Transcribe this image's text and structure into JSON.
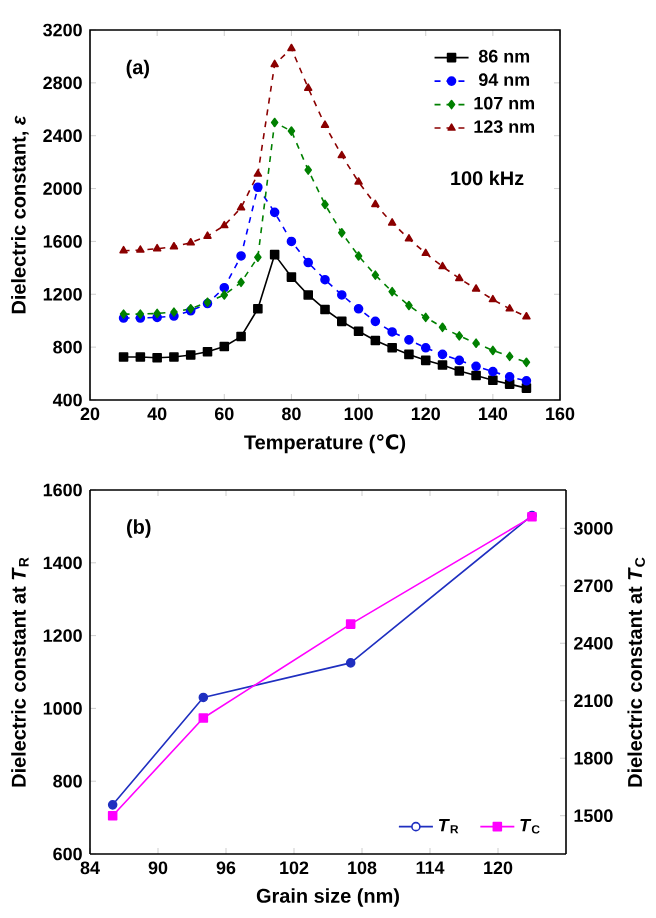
{
  "chart_data": [
    {
      "type": "line",
      "xlabel": "Temperature (℃)",
      "ylabel": "Dielectric constant, *ε*",
      "annotations": [
        "(a)",
        "100 kHz"
      ],
      "x": [
        30,
        35,
        40,
        45,
        50,
        55,
        60,
        65,
        70,
        75,
        80,
        85,
        90,
        95,
        100,
        105,
        110,
        115,
        120,
        125,
        130,
        135,
        140,
        145,
        150
      ],
      "xlim": [
        20,
        160
      ],
      "xticks": [
        20,
        40,
        60,
        80,
        100,
        120,
        140,
        160
      ],
      "ylim": [
        400,
        3200
      ],
      "yticks": [
        400,
        800,
        1200,
        1600,
        2000,
        2400,
        2800,
        3200
      ],
      "legend": "top right",
      "series": [
        {
          "name": "86 nm",
          "color": "#000000",
          "marker": "square",
          "line_style": "solid",
          "values": [
            725,
            725,
            720,
            725,
            740,
            765,
            805,
            880,
            1090,
            1500,
            1330,
            1195,
            1085,
            995,
            920,
            850,
            795,
            745,
            700,
            665,
            620,
            585,
            550,
            520,
            490
          ]
        },
        {
          "name": "94 nm",
          "color": "#0000ff",
          "marker": "circle",
          "line_style": "dashed",
          "values": [
            1020,
            1020,
            1025,
            1035,
            1075,
            1130,
            1250,
            1490,
            2010,
            1820,
            1600,
            1440,
            1310,
            1195,
            1090,
            995,
            915,
            855,
            795,
            745,
            700,
            655,
            615,
            575,
            545
          ]
        },
        {
          "name": "107 nm",
          "color": "#008000",
          "marker": "diamond",
          "line_style": "dashed",
          "values": [
            1050,
            1050,
            1055,
            1065,
            1090,
            1140,
            1195,
            1290,
            1480,
            2500,
            2435,
            2140,
            1880,
            1665,
            1490,
            1345,
            1220,
            1115,
            1025,
            950,
            885,
            830,
            775,
            730,
            685
          ]
        },
        {
          "name": "123 nm",
          "color": "#8b0000",
          "marker": "triangle",
          "line_style": "dashed",
          "values": [
            1530,
            1535,
            1545,
            1560,
            1590,
            1640,
            1720,
            1855,
            2110,
            2940,
            3060,
            2760,
            2480,
            2250,
            2050,
            1880,
            1740,
            1620,
            1510,
            1410,
            1320,
            1240,
            1160,
            1090,
            1030
          ]
        }
      ]
    },
    {
      "type": "line",
      "xlabel": "Grain size (nm)",
      "ylabel": "Dielectric constant at *T*$_{R}$",
      "y2label": "Dielectric constant at *T*$_{C}$",
      "annotations": [
        "(b)"
      ],
      "x": [
        86,
        94,
        107,
        123
      ],
      "xlim": [
        84,
        126
      ],
      "xticks": [
        84,
        90,
        96,
        102,
        108,
        114,
        120
      ],
      "ylim": [
        600,
        1600
      ],
      "yticks": [
        600,
        800,
        1000,
        1200,
        1400,
        1600
      ],
      "y2lim": [
        1300,
        3200
      ],
      "y2ticks": [
        1500,
        1800,
        2100,
        2400,
        2700,
        3000
      ],
      "legend": "bottom right",
      "series": [
        {
          "name": "*T*$_{R}$",
          "color": "#1f2fc0",
          "marker": "circle",
          "line_style": "solid",
          "values": [
            735,
            1030,
            1125,
            1530
          ]
        },
        {
          "name": "*T*$_{C}$",
          "color": "#ff00ff",
          "marker": "square",
          "line_style": "solid",
          "axis": "y2",
          "values": [
            1500,
            2010,
            2500,
            3060
          ]
        }
      ]
    }
  ]
}
